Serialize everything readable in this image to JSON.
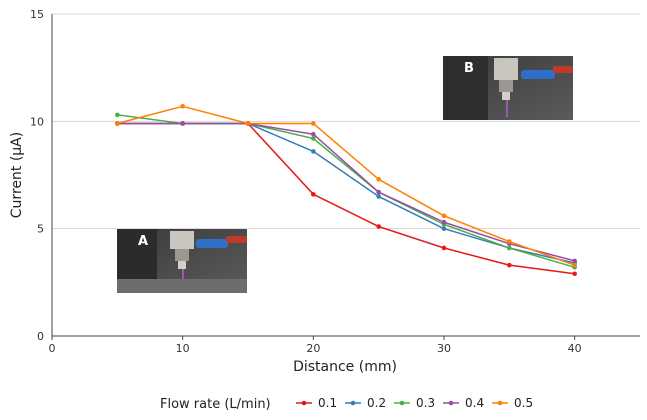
{
  "chart_data": {
    "type": "line",
    "title": "",
    "xlabel": "Distance (mm)",
    "ylabel": "Current (μA)",
    "xlim": [
      0,
      45
    ],
    "ylim": [
      0,
      15
    ],
    "xticks": [
      0,
      10,
      20,
      30,
      40
    ],
    "yticks": [
      0,
      5,
      10,
      15
    ],
    "grid": "horizontal",
    "legend_title": "Flow rate (L/min)",
    "legend_position": "bottom",
    "x": [
      5,
      10,
      15,
      20,
      25,
      30,
      35,
      40
    ],
    "series": [
      {
        "name": "0.1",
        "color": "#e41a1c",
        "values": [
          9.9,
          9.9,
          9.9,
          6.6,
          5.1,
          4.1,
          3.3,
          2.9
        ]
      },
      {
        "name": "0.2",
        "color": "#377eb8",
        "values": [
          9.9,
          9.9,
          9.9,
          8.6,
          6.5,
          5.0,
          4.1,
          3.4
        ]
      },
      {
        "name": "0.3",
        "color": "#4daf4a",
        "values": [
          10.3,
          9.9,
          9.9,
          9.2,
          6.7,
          5.2,
          4.1,
          3.2
        ]
      },
      {
        "name": "0.4",
        "color": "#984ea3",
        "values": [
          9.9,
          9.9,
          9.9,
          9.4,
          6.7,
          5.3,
          4.3,
          3.5
        ]
      },
      {
        "name": "0.5",
        "color": "#ff7f00",
        "values": [
          9.9,
          10.7,
          9.9,
          9.9,
          7.3,
          5.6,
          4.4,
          3.3
        ]
      }
    ],
    "insets": [
      {
        "label": "A"
      },
      {
        "label": "B"
      }
    ]
  }
}
